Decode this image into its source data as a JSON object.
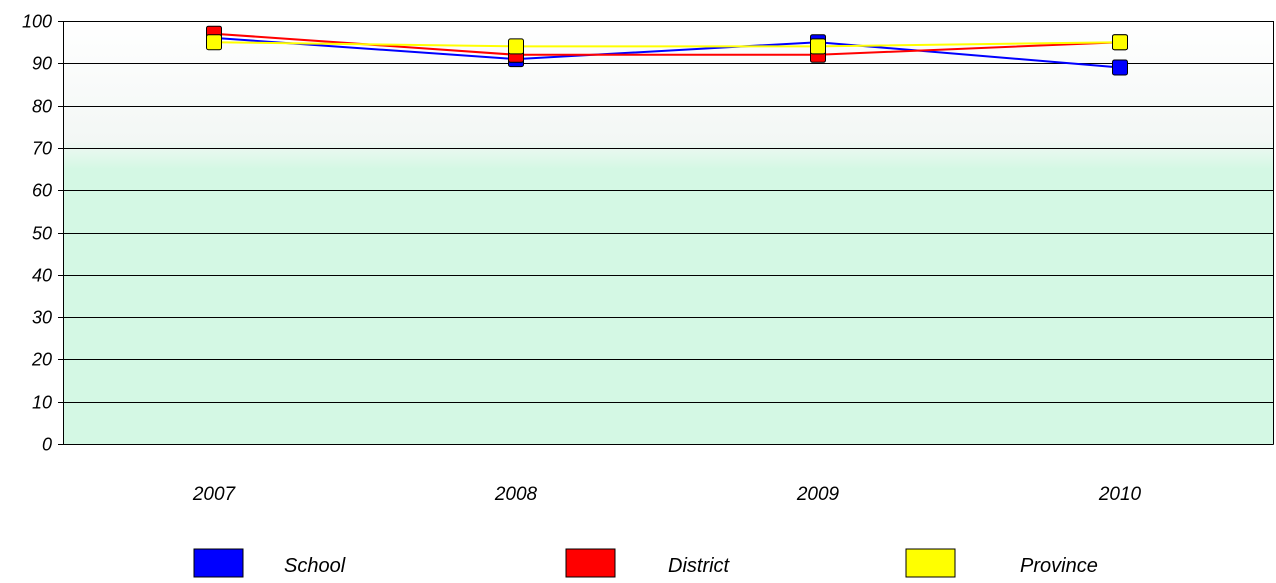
{
  "chart_data": {
    "type": "line",
    "title": "",
    "xlabel": "",
    "ylabel": "",
    "categories": [
      "2007",
      "2008",
      "2009",
      "2010"
    ],
    "ylim": [
      0,
      100
    ],
    "yticks": [
      0,
      10,
      20,
      30,
      40,
      50,
      60,
      70,
      80,
      90,
      100
    ],
    "grid": true,
    "legend_position": "bottom",
    "series": [
      {
        "name": "School",
        "color": "#0000ff",
        "values": [
          96,
          91,
          95,
          89
        ]
      },
      {
        "name": "District",
        "color": "#ff0000",
        "values": [
          97,
          92,
          92,
          95
        ]
      },
      {
        "name": "Province",
        "color": "#ffff00",
        "values": [
          95,
          94,
          94,
          95
        ]
      }
    ],
    "plot_background": {
      "top": "#ffffff",
      "bottom": "#d4f8e4"
    }
  }
}
